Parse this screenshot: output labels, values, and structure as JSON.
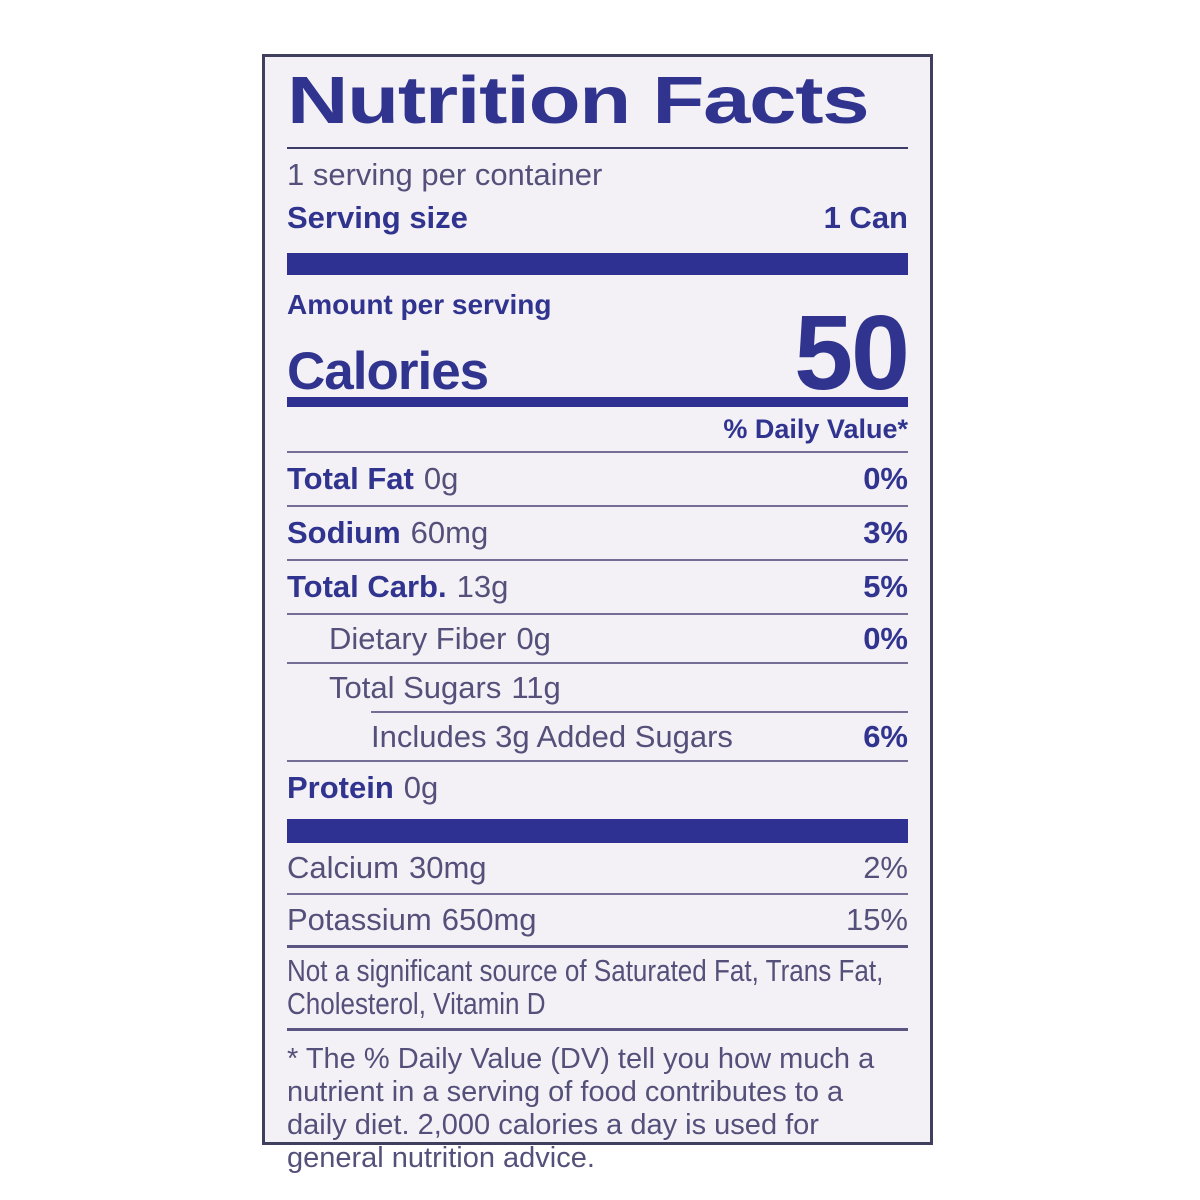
{
  "nutrition_label": {
    "title": "Nutrition Facts",
    "servings_per_container": "1 serving per container",
    "serving_size_label": "Serving size",
    "serving_size_value": "1 Can",
    "amount_per_serving_label": "Amount per serving",
    "calories_label": "Calories",
    "calories_value": "50",
    "daily_value_header": "% Daily Value*",
    "rows": [
      {
        "name": "Total Fat",
        "amount": "0g",
        "dv": "0%"
      },
      {
        "name": "Sodium",
        "amount": "60mg",
        "dv": "3%"
      },
      {
        "name": "Total Carb.",
        "amount": "13g",
        "dv": "5%"
      },
      {
        "name": "Dietary Fiber",
        "amount": "0g",
        "dv": "0%"
      },
      {
        "name": "Total Sugars",
        "amount": "11g",
        "dv": ""
      },
      {
        "name": "Includes 3g Added Sugars",
        "amount": "",
        "dv": "6%"
      },
      {
        "name": "Protein",
        "amount": "0g",
        "dv": ""
      }
    ],
    "minerals": [
      {
        "name": "Calcium",
        "amount": "30mg",
        "dv": "2%"
      },
      {
        "name": "Potassium",
        "amount": "650mg",
        "dv": "15%"
      }
    ],
    "not_significant_note": "Not a significant source of Saturated Fat, Trans Fat, Cholesterol, Vitamin D",
    "footnote": "* The % Daily Value (DV) tell you how much a nutrient in a serving of food contributes to a daily diet. 2,000 calories a day is used for general nutrition advice."
  },
  "colors": {
    "accent_navy": "#2e3192",
    "bold_text_navy": "#31348f",
    "body_text_purple_gray": "#55507a",
    "label_background": "#f3f1f6",
    "label_border": "#40405e",
    "page_background": "#ffffff"
  }
}
